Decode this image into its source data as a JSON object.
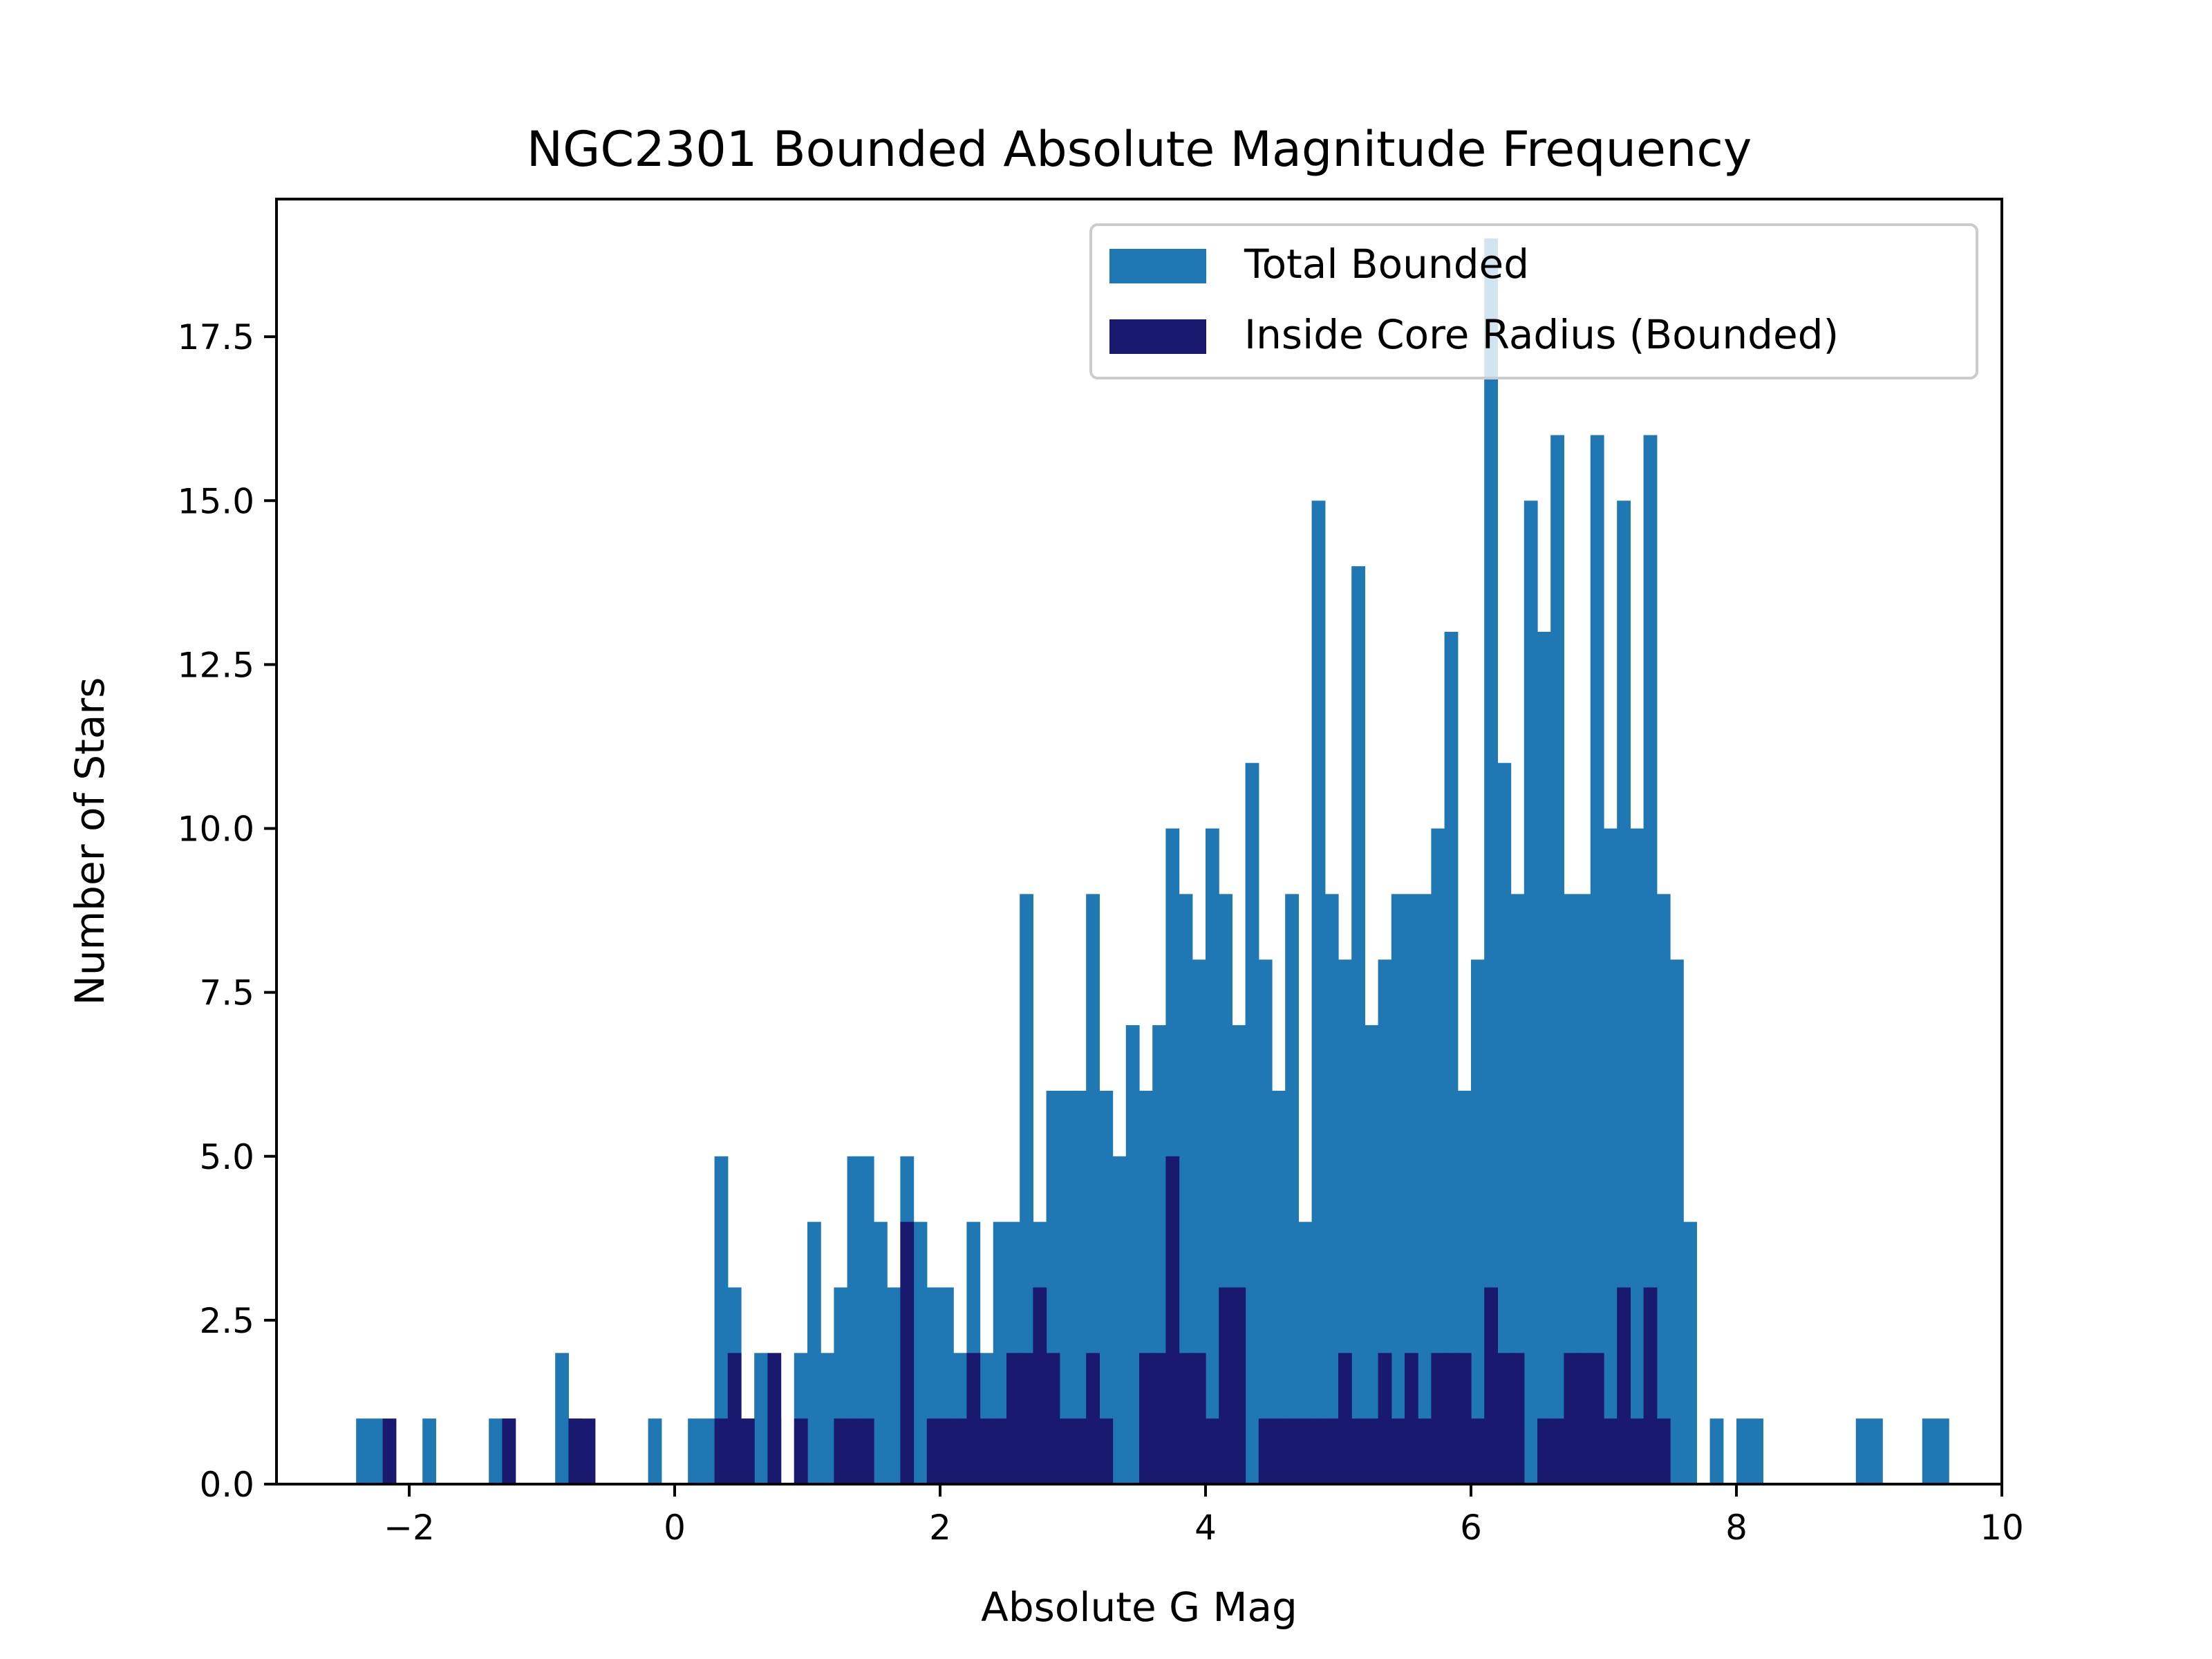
{
  "chart_data": {
    "type": "bar",
    "title": "NGC2301 Bounded Absolute Magnitude Frequency",
    "xlabel": "Absolute G Mag",
    "ylabel": "Number of Stars",
    "xlim": [
      -3,
      10
    ],
    "ylim": [
      0,
      19.6
    ],
    "xticks": [
      -2,
      0,
      2,
      4,
      6,
      8,
      10
    ],
    "xtick_labels": [
      "−2",
      "0",
      "2",
      "4",
      "6",
      "8",
      "10"
    ],
    "yticks": [
      0,
      2.5,
      5,
      7.5,
      10,
      12.5,
      15,
      17.5
    ],
    "ytick_labels": [
      "0.0",
      "2.5",
      "5.0",
      "7.5",
      "10.0",
      "12.5",
      "15.0",
      "17.5"
    ],
    "grid": false,
    "legend_position": "top-right",
    "bin_width": 0.1,
    "series": [
      {
        "name": "Total Bounded",
        "color": "#1f77b4",
        "bins": [
          [
            -2.4,
            1
          ],
          [
            -2.3,
            1
          ],
          [
            -1.9,
            1
          ],
          [
            -1.4,
            1
          ],
          [
            -1.3,
            1
          ],
          [
            -0.9,
            2
          ],
          [
            -0.8,
            1
          ],
          [
            -0.2,
            1
          ],
          [
            0.1,
            1
          ],
          [
            0.2,
            1
          ],
          [
            0.3,
            5
          ],
          [
            0.4,
            3
          ],
          [
            0.5,
            1
          ],
          [
            0.6,
            2
          ],
          [
            0.7,
            1
          ],
          [
            0.9,
            2
          ],
          [
            1.0,
            4
          ],
          [
            1.1,
            2
          ],
          [
            1.2,
            3
          ],
          [
            1.3,
            5
          ],
          [
            1.4,
            5
          ],
          [
            1.5,
            4
          ],
          [
            1.6,
            3
          ],
          [
            1.7,
            5
          ],
          [
            1.8,
            4
          ],
          [
            1.9,
            3
          ],
          [
            2.0,
            3
          ],
          [
            2.1,
            2
          ],
          [
            2.2,
            4
          ],
          [
            2.3,
            2
          ],
          [
            2.4,
            4
          ],
          [
            2.5,
            4
          ],
          [
            2.6,
            9
          ],
          [
            2.7,
            4
          ],
          [
            2.8,
            6
          ],
          [
            2.9,
            6
          ],
          [
            3.0,
            6
          ],
          [
            3.1,
            9
          ],
          [
            3.2,
            6
          ],
          [
            3.3,
            5
          ],
          [
            3.4,
            7
          ],
          [
            3.5,
            6
          ],
          [
            3.6,
            7
          ],
          [
            3.7,
            10
          ],
          [
            3.8,
            9
          ],
          [
            3.9,
            8
          ],
          [
            4.0,
            10
          ],
          [
            4.1,
            9
          ],
          [
            4.2,
            7
          ],
          [
            4.3,
            11
          ],
          [
            4.4,
            8
          ],
          [
            4.5,
            6
          ],
          [
            4.6,
            9
          ],
          [
            4.7,
            4
          ],
          [
            4.8,
            15
          ],
          [
            4.9,
            9
          ],
          [
            5.0,
            8
          ],
          [
            5.1,
            14
          ],
          [
            5.2,
            7
          ],
          [
            5.3,
            8
          ],
          [
            5.4,
            9
          ],
          [
            5.5,
            9
          ],
          [
            5.6,
            9
          ],
          [
            5.7,
            10
          ],
          [
            5.8,
            13
          ],
          [
            5.9,
            6
          ],
          [
            6.0,
            8
          ],
          [
            6.1,
            19
          ],
          [
            6.2,
            11
          ],
          [
            6.3,
            9
          ],
          [
            6.4,
            15
          ],
          [
            6.5,
            13
          ],
          [
            6.6,
            16
          ],
          [
            6.7,
            9
          ],
          [
            6.8,
            9
          ],
          [
            6.9,
            16
          ],
          [
            7.0,
            10
          ],
          [
            7.1,
            15
          ],
          [
            7.2,
            10
          ],
          [
            7.3,
            16
          ],
          [
            7.4,
            9
          ],
          [
            7.5,
            8
          ],
          [
            7.6,
            4
          ],
          [
            7.8,
            1
          ],
          [
            8.0,
            1
          ],
          [
            8.1,
            1
          ],
          [
            8.9,
            1
          ],
          [
            9.0,
            1
          ],
          [
            9.4,
            1
          ],
          [
            9.5,
            1
          ]
        ]
      },
      {
        "name": "Inside Core Radius (Bounded)",
        "color": "#191970",
        "bins": [
          [
            -2.2,
            1
          ],
          [
            -1.3,
            1
          ],
          [
            -0.8,
            1
          ],
          [
            -0.7,
            1
          ],
          [
            0.3,
            1
          ],
          [
            0.4,
            2
          ],
          [
            0.5,
            1
          ],
          [
            0.7,
            2
          ],
          [
            0.9,
            1
          ],
          [
            1.2,
            1
          ],
          [
            1.3,
            1
          ],
          [
            1.4,
            1
          ],
          [
            1.7,
            4
          ],
          [
            1.9,
            1
          ],
          [
            2.0,
            1
          ],
          [
            2.1,
            1
          ],
          [
            2.2,
            2
          ],
          [
            2.3,
            1
          ],
          [
            2.4,
            1
          ],
          [
            2.5,
            2
          ],
          [
            2.6,
            2
          ],
          [
            2.7,
            3
          ],
          [
            2.8,
            2
          ],
          [
            2.9,
            1
          ],
          [
            3.0,
            1
          ],
          [
            3.1,
            2
          ],
          [
            3.2,
            1
          ],
          [
            3.5,
            2
          ],
          [
            3.6,
            2
          ],
          [
            3.7,
            5
          ],
          [
            3.8,
            2
          ],
          [
            3.9,
            2
          ],
          [
            4.0,
            1
          ],
          [
            4.1,
            3
          ],
          [
            4.2,
            3
          ],
          [
            4.4,
            1
          ],
          [
            4.5,
            1
          ],
          [
            4.6,
            1
          ],
          [
            4.7,
            1
          ],
          [
            4.8,
            1
          ],
          [
            4.9,
            1
          ],
          [
            5.0,
            2
          ],
          [
            5.1,
            1
          ],
          [
            5.2,
            1
          ],
          [
            5.3,
            2
          ],
          [
            5.4,
            1
          ],
          [
            5.5,
            2
          ],
          [
            5.6,
            1
          ],
          [
            5.7,
            2
          ],
          [
            5.8,
            2
          ],
          [
            5.9,
            2
          ],
          [
            6.0,
            1
          ],
          [
            6.1,
            3
          ],
          [
            6.2,
            2
          ],
          [
            6.3,
            2
          ],
          [
            6.5,
            1
          ],
          [
            6.6,
            1
          ],
          [
            6.7,
            2
          ],
          [
            6.8,
            2
          ],
          [
            6.9,
            2
          ],
          [
            7.0,
            1
          ],
          [
            7.1,
            3
          ],
          [
            7.2,
            1
          ],
          [
            7.3,
            3
          ],
          [
            7.4,
            1
          ]
        ]
      }
    ]
  }
}
